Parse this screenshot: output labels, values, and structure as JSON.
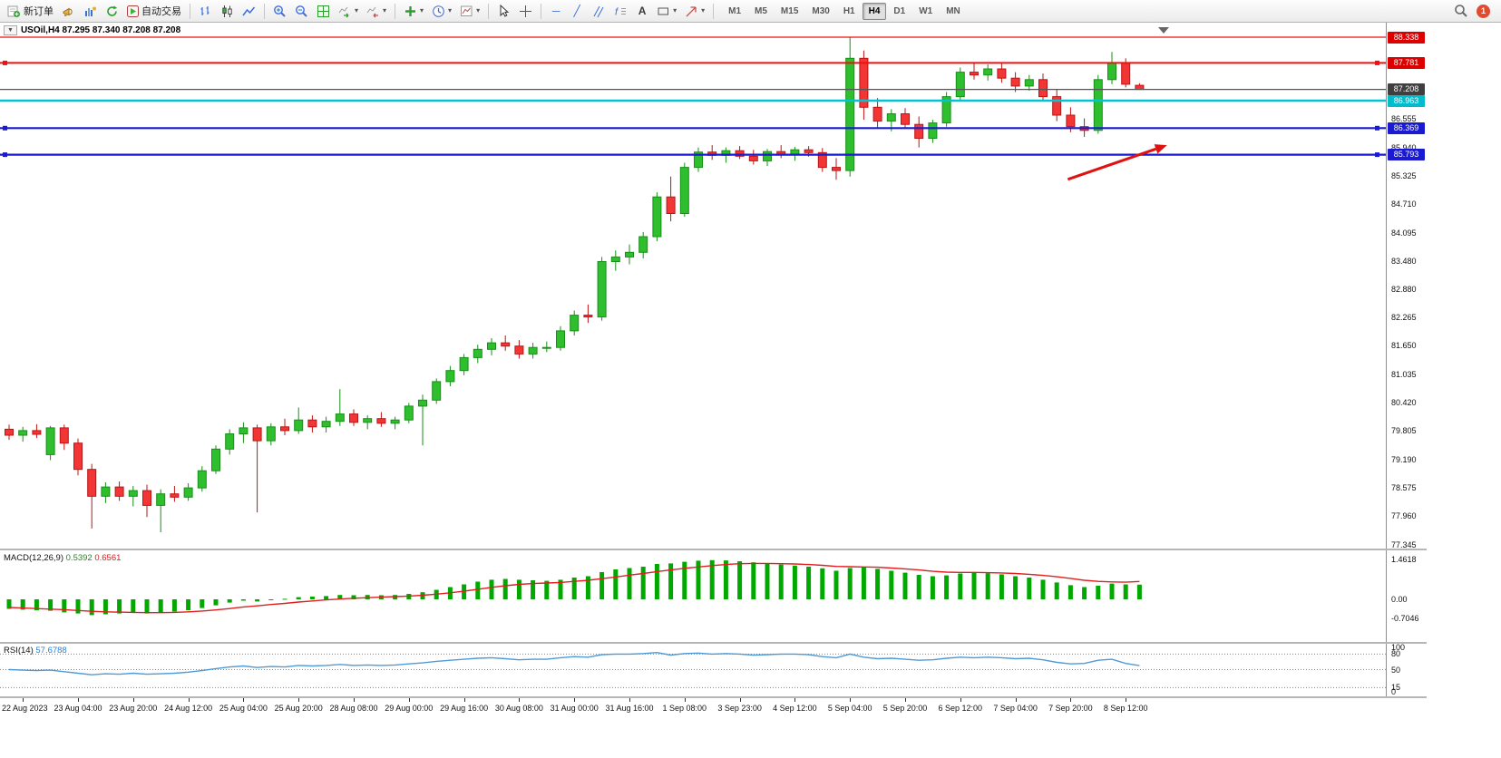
{
  "toolbar": {
    "new_order_label": "新订单",
    "autotrading_label": "自动交易",
    "timeframes": [
      "M1",
      "M5",
      "M15",
      "M30",
      "H1",
      "H4",
      "D1",
      "W1",
      "MN"
    ],
    "active_timeframe": "H4",
    "notification_count": "1",
    "tool_glyphs": {
      "crosshair": "+",
      "hline": "─",
      "trendline": "╱",
      "text": "A",
      "caret": "▾",
      "title_dropdown": "▼"
    }
  },
  "chart": {
    "title": "USOil,H4 87.295 87.340 87.208 87.208",
    "price_axis": [
      {
        "label": "88.338",
        "style": "badge",
        "bg": "#dd0000"
      },
      {
        "label": "87.781",
        "style": "badge",
        "bg": "#dd0000"
      },
      {
        "label": "87.208",
        "style": "badge",
        "bg": "#3f3f3f"
      },
      {
        "label": "86.963",
        "style": "badge",
        "bg": "#00bccd"
      },
      {
        "label": "86.555",
        "style": "plain"
      },
      {
        "label": "86.369",
        "style": "badge",
        "bg": "#1a1ad0"
      },
      {
        "label": "85.940",
        "style": "plain"
      },
      {
        "label": "85.793",
        "style": "badge",
        "bg": "#1a1ad0"
      },
      {
        "label": "85.325",
        "style": "plain"
      },
      {
        "label": "84.710",
        "style": "plain"
      },
      {
        "label": "84.095",
        "style": "plain"
      },
      {
        "label": "83.480",
        "style": "plain"
      },
      {
        "label": "82.880",
        "style": "plain"
      },
      {
        "label": "82.265",
        "style": "plain"
      },
      {
        "label": "81.650",
        "style": "plain"
      },
      {
        "label": "81.035",
        "style": "plain"
      },
      {
        "label": "80.420",
        "style": "plain"
      },
      {
        "label": "79.805",
        "style": "plain"
      },
      {
        "label": "79.190",
        "style": "plain"
      },
      {
        "label": "78.575",
        "style": "plain"
      },
      {
        "label": "77.960",
        "style": "plain"
      },
      {
        "label": "77.345",
        "style": "plain"
      }
    ]
  },
  "chart_data": {
    "type": "candlestick",
    "symbol": "USOil",
    "timeframe": "H4",
    "ohlc_current": {
      "open": 87.295,
      "high": 87.34,
      "low": 87.208,
      "close": 87.208
    },
    "price_range": [
      77.345,
      88.338
    ],
    "colors": {
      "up": "#2ebe2e",
      "up_stroke": "#169116",
      "down": "#f23636",
      "down_stroke": "#bb1414"
    },
    "candles": [
      [
        79.85,
        79.95,
        79.62,
        79.72
      ],
      [
        79.72,
        79.9,
        79.58,
        79.82
      ],
      [
        79.82,
        79.96,
        79.66,
        79.74
      ],
      [
        79.3,
        79.92,
        79.18,
        79.88
      ],
      [
        79.88,
        79.95,
        79.4,
        79.55
      ],
      [
        79.55,
        79.65,
        78.85,
        78.98
      ],
      [
        78.98,
        79.1,
        77.7,
        78.4
      ],
      [
        78.4,
        78.7,
        78.25,
        78.6
      ],
      [
        78.6,
        78.72,
        78.3,
        78.4
      ],
      [
        78.4,
        78.62,
        78.18,
        78.52
      ],
      [
        78.52,
        78.65,
        77.95,
        78.2
      ],
      [
        78.2,
        78.55,
        77.62,
        78.45
      ],
      [
        78.45,
        78.62,
        78.28,
        78.38
      ],
      [
        78.38,
        78.68,
        78.3,
        78.58
      ],
      [
        78.58,
        79.05,
        78.5,
        78.95
      ],
      [
        78.95,
        79.5,
        78.88,
        79.42
      ],
      [
        79.42,
        79.85,
        79.3,
        79.75
      ],
      [
        79.75,
        80.0,
        79.55,
        79.88
      ],
      [
        79.88,
        79.95,
        78.05,
        79.6
      ],
      [
        79.6,
        79.98,
        79.5,
        79.9
      ],
      [
        79.9,
        80.08,
        79.72,
        79.82
      ],
      [
        79.82,
        80.32,
        79.75,
        80.05
      ],
      [
        80.05,
        80.15,
        79.78,
        79.9
      ],
      [
        79.9,
        80.12,
        79.78,
        80.02
      ],
      [
        80.02,
        80.72,
        79.92,
        80.18
      ],
      [
        80.18,
        80.28,
        79.92,
        80.0
      ],
      [
        80.0,
        80.15,
        79.85,
        80.08
      ],
      [
        80.08,
        80.22,
        79.9,
        79.98
      ],
      [
        79.98,
        80.12,
        79.85,
        80.05
      ],
      [
        80.05,
        80.42,
        79.98,
        80.35
      ],
      [
        80.35,
        80.6,
        79.5,
        80.48
      ],
      [
        80.48,
        80.95,
        80.4,
        80.88
      ],
      [
        80.88,
        81.22,
        80.78,
        81.12
      ],
      [
        81.12,
        81.48,
        81.02,
        81.4
      ],
      [
        81.4,
        81.68,
        81.28,
        81.58
      ],
      [
        81.58,
        81.82,
        81.45,
        81.72
      ],
      [
        81.72,
        81.88,
        81.55,
        81.65
      ],
      [
        81.65,
        81.78,
        81.38,
        81.48
      ],
      [
        81.48,
        81.72,
        81.38,
        81.62
      ],
      [
        81.62,
        81.75,
        81.52,
        81.62
      ],
      [
        81.62,
        82.08,
        81.55,
        81.98
      ],
      [
        81.98,
        82.42,
        81.88,
        82.32
      ],
      [
        82.32,
        82.55,
        82.15,
        82.28
      ],
      [
        82.28,
        83.58,
        82.2,
        83.48
      ],
      [
        83.48,
        83.72,
        83.28,
        83.58
      ],
      [
        83.58,
        83.85,
        83.42,
        83.68
      ],
      [
        83.68,
        84.12,
        83.55,
        84.02
      ],
      [
        84.02,
        84.98,
        83.92,
        84.88
      ],
      [
        84.88,
        85.32,
        84.35,
        84.52
      ],
      [
        84.52,
        85.62,
        84.45,
        85.52
      ],
      [
        85.52,
        85.95,
        85.42,
        85.85
      ],
      [
        85.85,
        86.0,
        85.68,
        85.78
      ],
      [
        85.78,
        85.95,
        85.62,
        85.88
      ],
      [
        85.88,
        85.98,
        85.7,
        85.76
      ],
      [
        85.76,
        85.9,
        85.58,
        85.66
      ],
      [
        85.66,
        85.92,
        85.55,
        85.86
      ],
      [
        85.86,
        86.0,
        85.72,
        85.8
      ],
      [
        85.8,
        85.96,
        85.66,
        85.9
      ],
      [
        85.9,
        85.98,
        85.75,
        85.84
      ],
      [
        85.84,
        85.94,
        85.42,
        85.52
      ],
      [
        85.52,
        85.72,
        85.25,
        85.45
      ],
      [
        85.45,
        88.34,
        85.32,
        87.88
      ],
      [
        87.88,
        88.05,
        86.55,
        86.82
      ],
      [
        86.82,
        87.02,
        86.38,
        86.52
      ],
      [
        86.52,
        86.78,
        86.3,
        86.68
      ],
      [
        86.68,
        86.8,
        86.35,
        86.45
      ],
      [
        86.45,
        86.62,
        85.95,
        86.15
      ],
      [
        86.15,
        86.55,
        86.05,
        86.48
      ],
      [
        86.48,
        87.15,
        86.4,
        87.05
      ],
      [
        87.05,
        87.68,
        86.95,
        87.58
      ],
      [
        87.58,
        87.8,
        87.42,
        87.52
      ],
      [
        87.52,
        87.75,
        87.4,
        87.65
      ],
      [
        87.65,
        87.78,
        87.35,
        87.45
      ],
      [
        87.45,
        87.58,
        87.15,
        87.28
      ],
      [
        87.28,
        87.52,
        87.18,
        87.42
      ],
      [
        87.42,
        87.55,
        86.95,
        87.05
      ],
      [
        87.05,
        87.22,
        86.52,
        86.65
      ],
      [
        86.65,
        86.82,
        86.28,
        86.4
      ],
      [
        86.4,
        86.58,
        86.18,
        86.32
      ],
      [
        86.32,
        87.52,
        86.25,
        87.42
      ],
      [
        87.42,
        88.02,
        87.32,
        87.78
      ],
      [
        87.78,
        87.88,
        87.25,
        87.32
      ],
      [
        87.295,
        87.34,
        87.208,
        87.208
      ]
    ],
    "time_labels": [
      {
        "i": 1,
        "t": "22 Aug 2023"
      },
      {
        "i": 5,
        "t": "23 Aug 04:00"
      },
      {
        "i": 9,
        "t": "23 Aug 20:00"
      },
      {
        "i": 13,
        "t": "24 Aug 12:00"
      },
      {
        "i": 17,
        "t": "25 Aug 04:00"
      },
      {
        "i": 21,
        "t": "25 Aug 20:00"
      },
      {
        "i": 25,
        "t": "28 Aug 08:00"
      },
      {
        "i": 29,
        "t": "29 Aug 00:00"
      },
      {
        "i": 33,
        "t": "29 Aug 16:00"
      },
      {
        "i": 37,
        "t": "30 Aug 08:00"
      },
      {
        "i": 41,
        "t": "31 Aug 00:00"
      },
      {
        "i": 45,
        "t": "31 Aug 16:00"
      },
      {
        "i": 49,
        "t": "1 Sep 08:00"
      },
      {
        "i": 53,
        "t": "3 Sep 23:00"
      },
      {
        "i": 57,
        "t": "4 Sep 12:00"
      },
      {
        "i": 61,
        "t": "5 Sep 04:00"
      },
      {
        "i": 65,
        "t": "5 Sep 20:00"
      },
      {
        "i": 69,
        "t": "6 Sep 12:00"
      },
      {
        "i": 73,
        "t": "7 Sep 04:00"
      },
      {
        "i": 77,
        "t": "7 Sep 20:00"
      },
      {
        "i": 81,
        "t": "8 Sep 12:00"
      }
    ],
    "hlines": [
      {
        "price": 88.338,
        "color": "#ee1111",
        "width": 1.2
      },
      {
        "price": 87.781,
        "color": "#ee1111",
        "width": 2,
        "handles": true
      },
      {
        "price": 87.208,
        "color": "#555555",
        "width": 1.2
      },
      {
        "price": 86.963,
        "color": "#00c3d4",
        "width": 2.5
      },
      {
        "price": 86.369,
        "color": "#1a1ad0",
        "width": 2.2,
        "handles": true
      },
      {
        "price": 85.793,
        "color": "#1a1ad0",
        "width": 2.2,
        "handles": true
      }
    ],
    "annotation_arrow": {
      "from_index": 76.8,
      "from_price": 85.26,
      "to_index": 84.0,
      "to_price": 86.0,
      "color": "#e01111"
    },
    "indicators": {
      "macd": {
        "name": "MACD(12,26,9)",
        "value_main": "0.5392",
        "value_signal": "0.6561",
        "axis_labels": [
          "1.4618",
          "0.00",
          "-0.7046"
        ],
        "hist_color": "#00a800",
        "signal_color": "#e02020",
        "histogram": [
          -0.35,
          -0.38,
          -0.4,
          -0.42,
          -0.48,
          -0.52,
          -0.58,
          -0.55,
          -0.52,
          -0.5,
          -0.52,
          -0.5,
          -0.45,
          -0.4,
          -0.32,
          -0.22,
          -0.12,
          -0.05,
          -0.08,
          -0.02,
          0.02,
          0.08,
          0.1,
          0.12,
          0.16,
          0.15,
          0.16,
          0.15,
          0.16,
          0.2,
          0.26,
          0.35,
          0.45,
          0.55,
          0.65,
          0.72,
          0.75,
          0.72,
          0.7,
          0.68,
          0.72,
          0.8,
          0.85,
          1.0,
          1.1,
          1.15,
          1.2,
          1.3,
          1.32,
          1.38,
          1.42,
          1.44,
          1.43,
          1.4,
          1.36,
          1.32,
          1.28,
          1.24,
          1.2,
          1.14,
          1.05,
          1.15,
          1.18,
          1.12,
          1.05,
          0.98,
          0.9,
          0.85,
          0.88,
          0.95,
          0.98,
          0.96,
          0.92,
          0.85,
          0.8,
          0.72,
          0.62,
          0.52,
          0.45,
          0.5,
          0.58,
          0.55,
          0.5392
        ],
        "signal": [
          -0.3,
          -0.32,
          -0.34,
          -0.36,
          -0.38,
          -0.41,
          -0.44,
          -0.46,
          -0.47,
          -0.48,
          -0.49,
          -0.49,
          -0.48,
          -0.46,
          -0.43,
          -0.39,
          -0.34,
          -0.28,
          -0.24,
          -0.19,
          -0.15,
          -0.1,
          -0.06,
          -0.02,
          0.01,
          0.04,
          0.06,
          0.08,
          0.1,
          0.12,
          0.15,
          0.19,
          0.24,
          0.3,
          0.37,
          0.44,
          0.5,
          0.55,
          0.58,
          0.6,
          0.62,
          0.66,
          0.7,
          0.76,
          0.82,
          0.89,
          0.95,
          1.02,
          1.08,
          1.14,
          1.19,
          1.24,
          1.28,
          1.31,
          1.32,
          1.32,
          1.31,
          1.3,
          1.28,
          1.25,
          1.21,
          1.2,
          1.19,
          1.18,
          1.15,
          1.12,
          1.08,
          1.03,
          1.0,
          0.99,
          0.99,
          0.98,
          0.97,
          0.95,
          0.92,
          0.88,
          0.83,
          0.77,
          0.7,
          0.66,
          0.64,
          0.63,
          0.6561
        ]
      },
      "rsi": {
        "name": "RSI(14)",
        "value": "57.6788",
        "axis_labels": [
          "100",
          "80",
          "50",
          "15",
          "0"
        ],
        "levels": [
          80,
          50,
          15
        ],
        "line_color": "#4f9bd8",
        "values": [
          50,
          49,
          48,
          49,
          46,
          43,
          40,
          42,
          41,
          43,
          41,
          42,
          43,
          45,
          48,
          52,
          55,
          57,
          54,
          56,
          55,
          58,
          57,
          58,
          60,
          58,
          59,
          58,
          59,
          61,
          63,
          66,
          68,
          70,
          72,
          73,
          71,
          69,
          70,
          70,
          73,
          75,
          74,
          79,
          80,
          80,
          81,
          83,
          78,
          81,
          82,
          80,
          81,
          80,
          78,
          79,
          80,
          80,
          79,
          75,
          73,
          80,
          74,
          71,
          72,
          70,
          68,
          69,
          72,
          74,
          73,
          74,
          73,
          71,
          72,
          69,
          64,
          61,
          62,
          68,
          70,
          62,
          57.68
        ]
      }
    }
  }
}
